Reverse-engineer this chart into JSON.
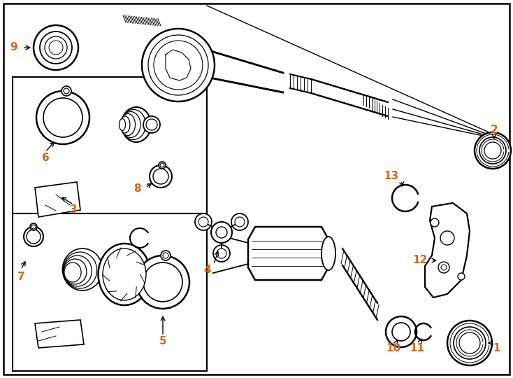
{
  "background_color": "#ffffff",
  "line_color": "#000000",
  "label_color": "#d4671e",
  "fig_width": 7.34,
  "fig_height": 5.4,
  "dpi": 100
}
